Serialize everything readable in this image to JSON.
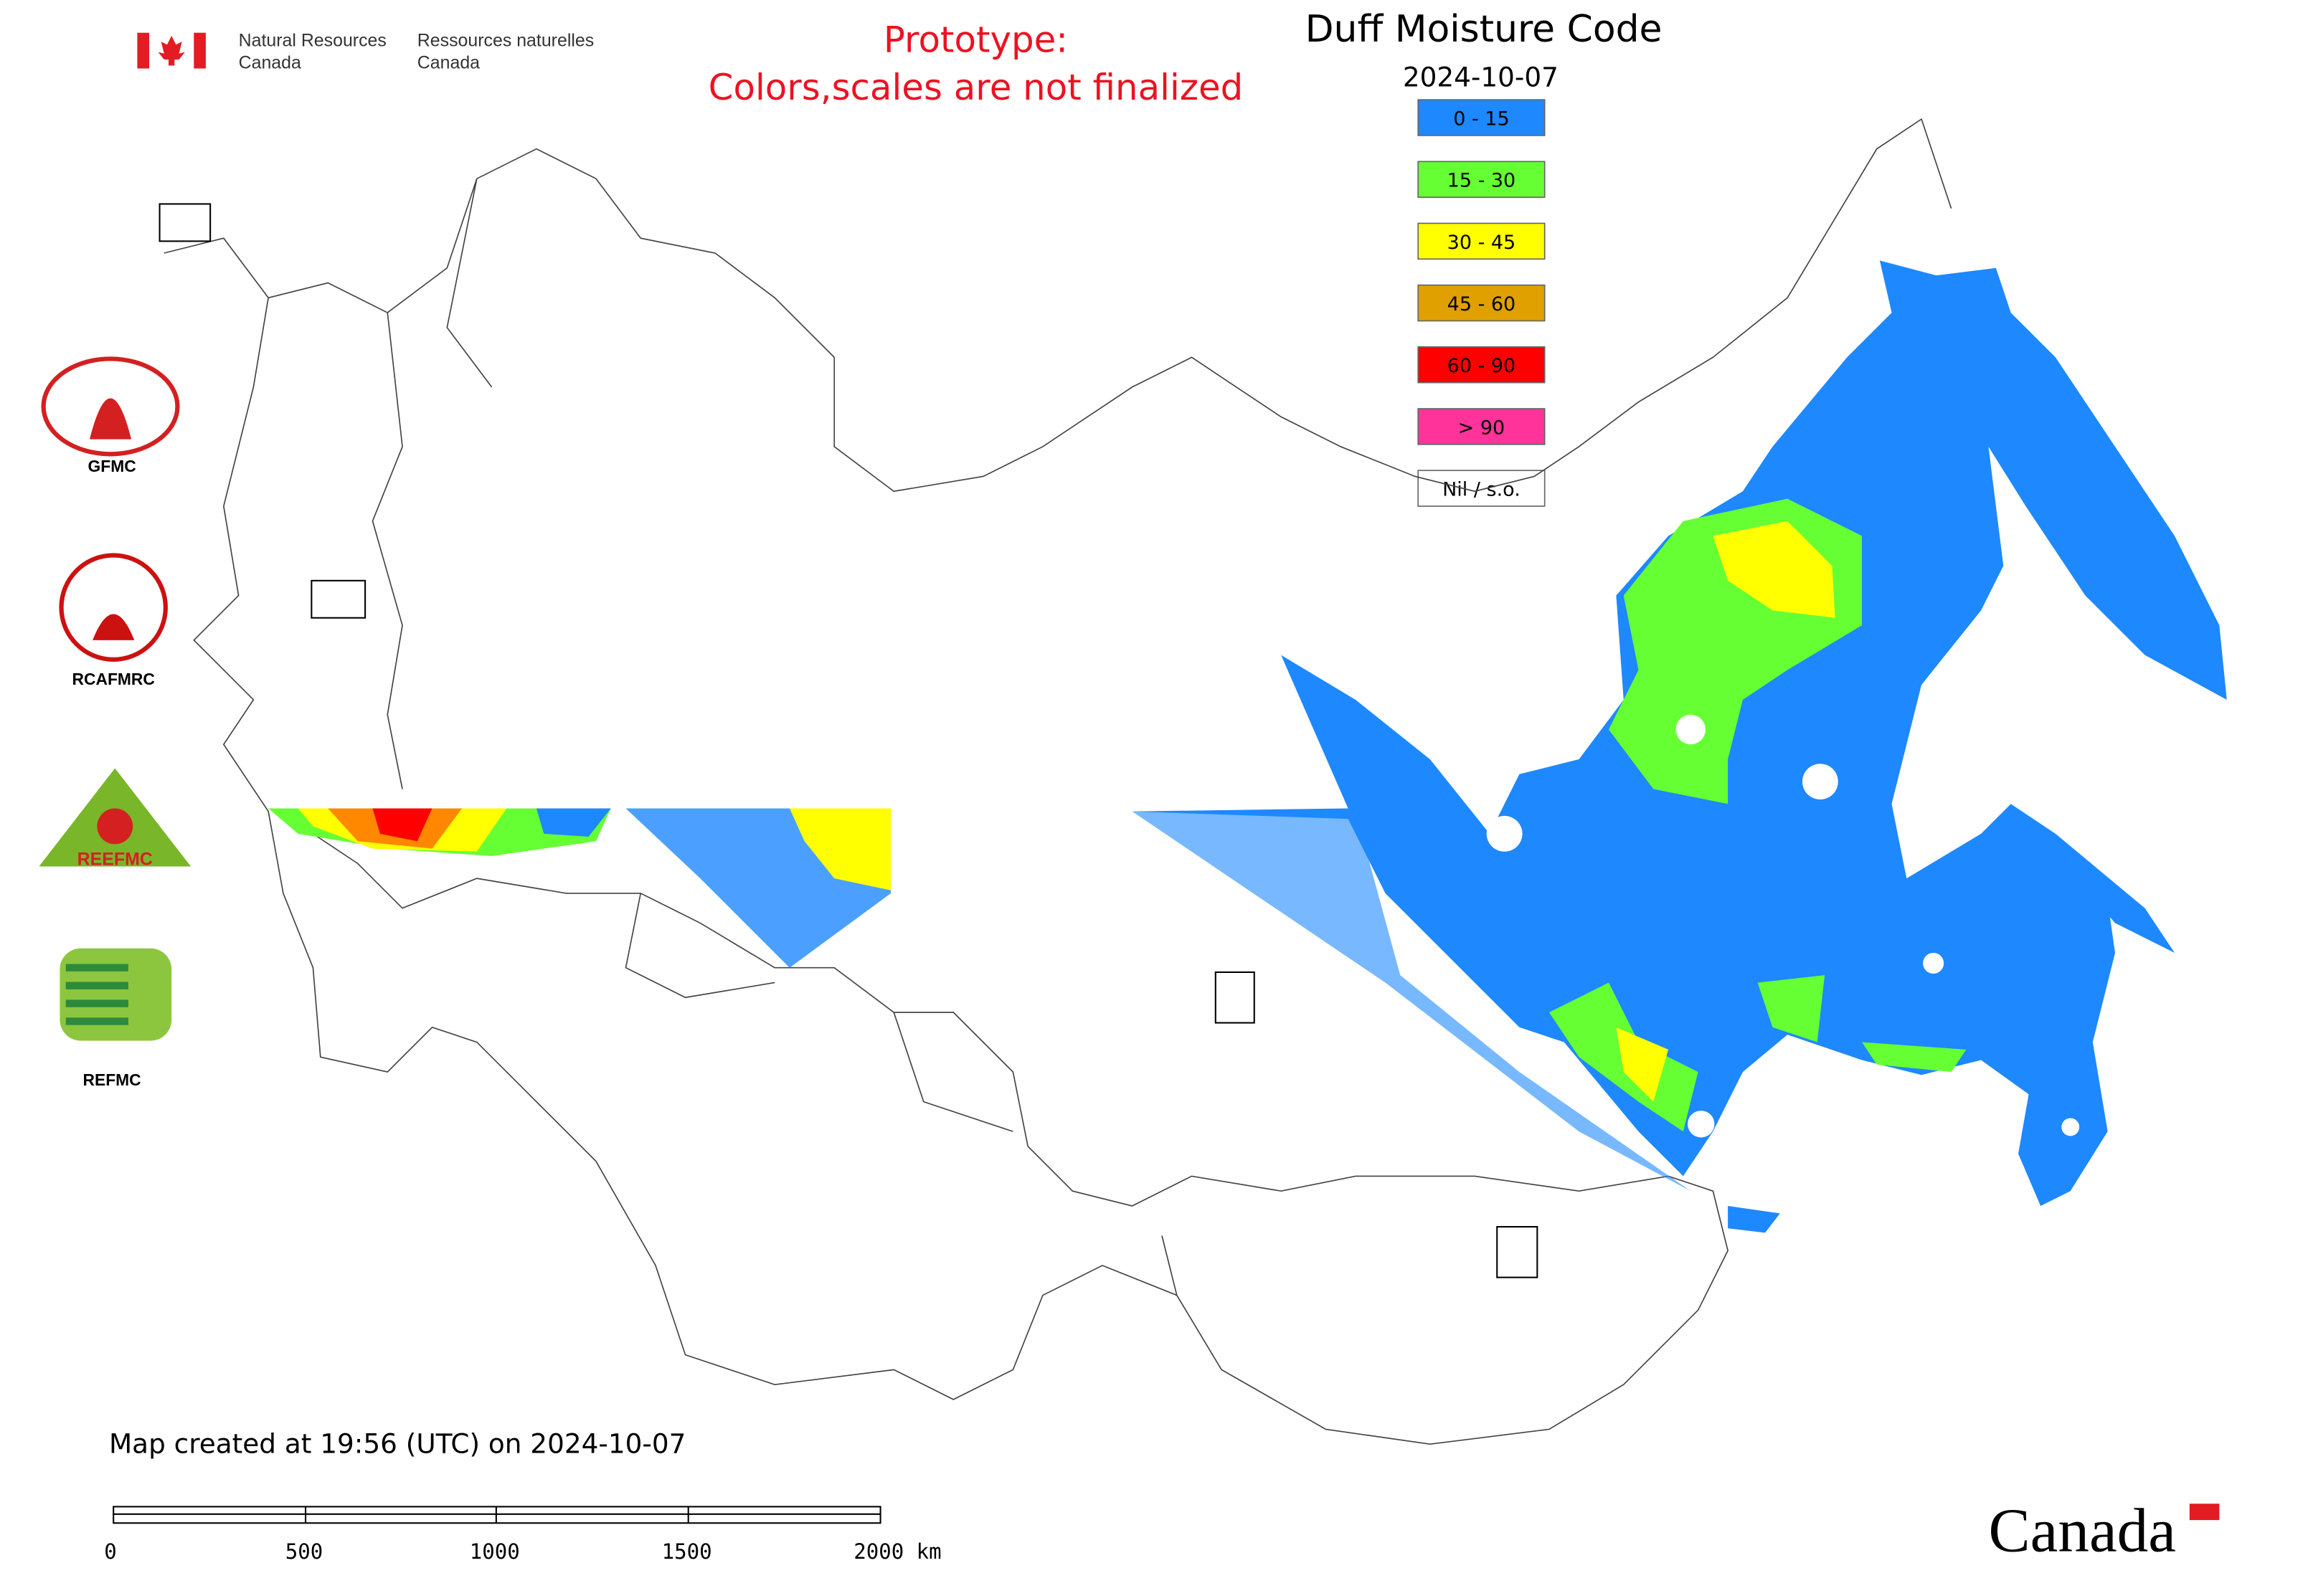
{
  "header": {
    "agency_en": [
      "Natural Resources",
      "Canada"
    ],
    "agency_fr": [
      "Ressources naturelles",
      "Canada"
    ],
    "notice": [
      "Prototype:",
      "Colors,scales are not finalized"
    ]
  },
  "map": {
    "title": "Duff Moisture Code",
    "date": "2024-10-07",
    "legend": [
      {
        "label": "0 - 15",
        "color": "#1e88ff"
      },
      {
        "label": "15 - 30",
        "color": "#66ff33"
      },
      {
        "label": "30 - 45",
        "color": "#ffff00"
      },
      {
        "label": "45 - 60",
        "color": "#e0a000"
      },
      {
        "label": "60 - 90",
        "color": "#ff0000"
      },
      {
        "label": "> 90",
        "color": "#ff3399"
      },
      {
        "label": "Nil / s.o.",
        "color": "#ffffff"
      }
    ]
  },
  "logos": [
    "GFMC",
    "RCAFMRC",
    "REEFMC",
    "REFMC"
  ],
  "footer": {
    "created": "Map created at 19:56 (UTC) on 2024-10-07",
    "scale_labels": [
      "0",
      "500",
      "1000",
      "1500",
      "2000 km"
    ],
    "wordmark": "Canada"
  }
}
